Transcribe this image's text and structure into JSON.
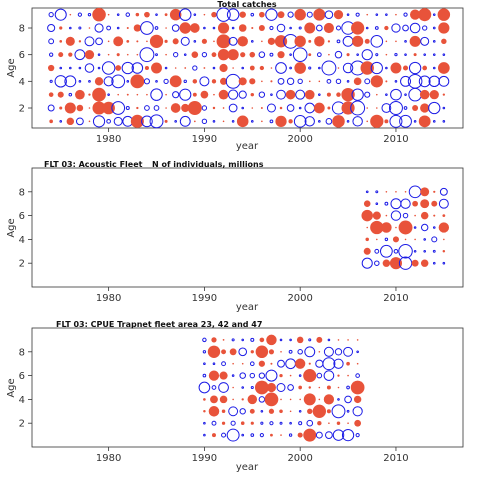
{
  "colors": {
    "positive": "#e8533a",
    "negative": "#1c1ce6"
  },
  "chart_data": [
    {
      "type": "scatter",
      "title": "Total catches",
      "subtitle": "",
      "xlabel": "year",
      "ylabel": "Age",
      "xlim": [
        1972,
        2017
      ],
      "ylim": [
        0.5,
        9.5
      ],
      "xticks": [
        1980,
        1990,
        2000,
        2010
      ],
      "yticks": [
        2,
        4,
        6,
        8
      ],
      "years": [
        1974,
        2015
      ],
      "ages": [
        1,
        9
      ]
    },
    {
      "type": "scatter",
      "title": "FLT 03: Acoustic Fleet",
      "subtitle": "N of individuals, millions",
      "xlabel": "year",
      "ylabel": "Age",
      "xlim": [
        1972,
        2017
      ],
      "ylim": [
        0,
        10
      ],
      "xticks": [
        1980,
        1990,
        2000,
        2010
      ],
      "yticks": [
        2,
        4,
        6,
        8
      ],
      "years": [
        2007,
        2015
      ],
      "ages": [
        2,
        8
      ]
    },
    {
      "type": "scatter",
      "title": "FLT 03: CPUE Trapnet fleet area 23, 42 and 47",
      "subtitle": "",
      "xlabel": "year",
      "ylabel": "Age",
      "xlim": [
        1972,
        2017
      ],
      "ylim": [
        0,
        10
      ],
      "xticks": [
        1980,
        1990,
        2000,
        2010
      ],
      "yticks": [
        2,
        4,
        6,
        8
      ],
      "years": [
        1990,
        2006
      ],
      "ages": [
        1,
        9
      ]
    }
  ]
}
